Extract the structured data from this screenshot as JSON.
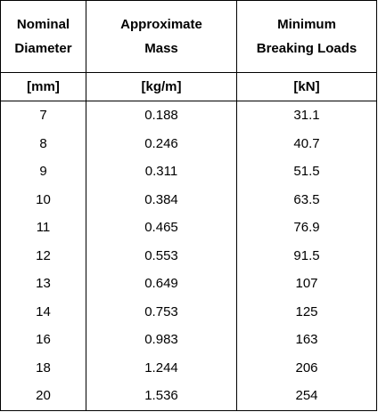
{
  "columns": [
    {
      "line1": "Nominal",
      "line2": "Diameter",
      "unit": "[mm]"
    },
    {
      "line1": "Approximate",
      "line2": "Mass",
      "unit": "[kg/m]"
    },
    {
      "line1": "Minimum",
      "line2": "Breaking Loads",
      "unit": "[kN]"
    }
  ],
  "rows": [
    {
      "diameter": "7",
      "mass": "0.188",
      "load": "31.1"
    },
    {
      "diameter": "8",
      "mass": "0.246",
      "load": "40.7"
    },
    {
      "diameter": "9",
      "mass": "0.311",
      "load": "51.5"
    },
    {
      "diameter": "10",
      "mass": "0.384",
      "load": "63.5"
    },
    {
      "diameter": "11",
      "mass": "0.465",
      "load": "76.9"
    },
    {
      "diameter": "12",
      "mass": "0.553",
      "load": "91.5"
    },
    {
      "diameter": "13",
      "mass": "0.649",
      "load": "107"
    },
    {
      "diameter": "14",
      "mass": "0.753",
      "load": "125"
    },
    {
      "diameter": "16",
      "mass": "0.983",
      "load": "163"
    },
    {
      "diameter": "18",
      "mass": "1.244",
      "load": "206"
    },
    {
      "diameter": "20",
      "mass": "1.536",
      "load": "254"
    }
  ]
}
